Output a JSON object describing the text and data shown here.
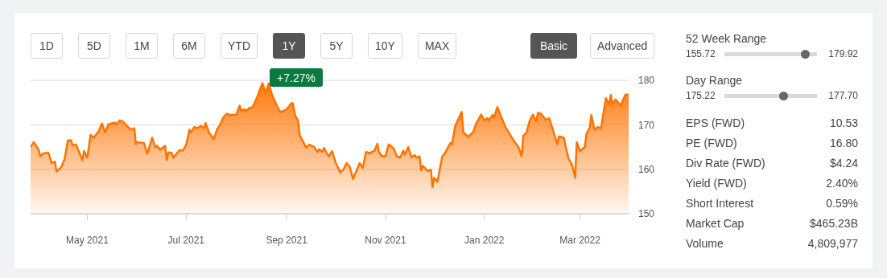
{
  "chart_data": [
    {
      "type": "area",
      "x": [
        "2021-03-27",
        "2021-03-29",
        "2021-04-01",
        "2021-04-02",
        "2021-04-04",
        "2021-04-07",
        "2021-04-09",
        "2021-04-11",
        "2021-04-12",
        "2021-04-15",
        "2021-04-17",
        "2021-04-19",
        "2021-04-21",
        "2021-04-22",
        "2021-04-24",
        "2021-04-28",
        "2021-04-29",
        "2021-05-01",
        "2021-05-03",
        "2021-05-05",
        "2021-05-08",
        "2021-05-10",
        "2021-05-12",
        "2021-05-14",
        "2021-05-18",
        "2021-05-19",
        "2021-05-21",
        "2021-05-23",
        "2021-05-27",
        "2021-05-28",
        "2021-05-30",
        "2021-05-31",
        "2021-06-01",
        "2021-06-05",
        "2021-06-07",
        "2021-06-10",
        "2021-06-12",
        "2021-06-13",
        "2021-06-15",
        "2021-06-17",
        "2021-06-18",
        "2021-06-19",
        "2021-06-20",
        "2021-06-22",
        "2021-06-23",
        "2021-06-27",
        "2021-06-29",
        "2021-07-01",
        "2021-07-03",
        "2021-07-04",
        "2021-07-06",
        "2021-07-08",
        "2021-07-10",
        "2021-07-12",
        "2021-07-13",
        "2021-07-15",
        "2021-07-18",
        "2021-07-20",
        "2021-07-22",
        "2021-07-24",
        "2021-07-26",
        "2021-07-28",
        "2021-08-01",
        "2021-08-03",
        "2021-08-04",
        "2021-08-06",
        "2021-08-07",
        "2021-08-09",
        "2021-08-11",
        "2021-08-14",
        "2021-08-17",
        "2021-08-19",
        "2021-08-21",
        "2021-08-23",
        "2021-08-26",
        "2021-08-28",
        "2021-08-30",
        "2021-09-01",
        "2021-09-04",
        "2021-09-05",
        "2021-09-06",
        "2021-09-08",
        "2021-09-09",
        "2021-09-13",
        "2021-09-15",
        "2021-09-18",
        "2021-09-20",
        "2021-09-21",
        "2021-09-23",
        "2021-09-24",
        "2021-09-26",
        "2021-09-27",
        "2021-09-29",
        "2021-10-01",
        "2021-10-04",
        "2021-10-06",
        "2021-10-08",
        "2021-10-10",
        "2021-10-12",
        "2021-10-14",
        "2021-10-16",
        "2021-10-18",
        "2021-10-20",
        "2021-10-22",
        "2021-10-25",
        "2021-10-27",
        "2021-10-28",
        "2021-10-30",
        "2021-11-01",
        "2021-11-03",
        "2021-11-06",
        "2021-11-08",
        "2021-11-10",
        "2021-11-12",
        "2021-11-13",
        "2021-11-15",
        "2021-11-17",
        "2021-11-19",
        "2021-11-20",
        "2021-11-22",
        "2021-11-23",
        "2021-11-24",
        "2021-11-27",
        "2021-11-29",
        "2021-11-30",
        "2021-12-01",
        "2021-12-03",
        "2021-12-06",
        "2021-12-08",
        "2021-12-11",
        "2021-12-12",
        "2021-12-14",
        "2021-12-16",
        "2021-12-18",
        "2021-12-19",
        "2021-12-22",
        "2021-12-25",
        "2021-12-27",
        "2021-12-30",
        "2022-01-01",
        "2022-01-03",
        "2022-01-04",
        "2022-01-06",
        "2022-01-07",
        "2022-01-09",
        "2022-01-10",
        "2022-01-14",
        "2022-01-17",
        "2022-01-19",
        "2022-01-22",
        "2022-01-24",
        "2022-01-25",
        "2022-01-27",
        "2022-01-29",
        "2022-01-31",
        "2022-02-02",
        "2022-02-03",
        "2022-02-05",
        "2022-02-08",
        "2022-02-10",
        "2022-02-12",
        "2022-02-15",
        "2022-02-16",
        "2022-02-19",
        "2022-02-20",
        "2022-02-22",
        "2022-02-24",
        "2022-02-26",
        "2022-02-27",
        "2022-03-01",
        "2022-03-04",
        "2022-03-05",
        "2022-03-07",
        "2022-03-08",
        "2022-03-10",
        "2022-03-12",
        "2022-03-14",
        "2022-03-15",
        "2022-03-17",
        "2022-03-19",
        "2022-03-20",
        "2022-03-21",
        "2022-03-23",
        "2022-03-26",
        "2022-03-29",
        "2022-03-31"
      ],
      "series": [
        {
          "color": "#ff7300",
          "values": [
            165.0,
            166.1,
            164.4,
            162.9,
            163.6,
            163.7,
            161.4,
            161.7,
            159.5,
            160.5,
            162.3,
            166.5,
            166.5,
            165.3,
            165.6,
            162.0,
            164.1,
            162.6,
            167.7,
            167.1,
            168.5,
            170.3,
            168.3,
            170.1,
            170.5,
            170.1,
            171.0,
            170.7,
            169.2,
            168.9,
            169.2,
            165.6,
            166.1,
            165.9,
            163.5,
            167.1,
            164.9,
            165.3,
            164.4,
            165.0,
            165.3,
            162.1,
            163.8,
            163.7,
            162.6,
            164.3,
            164.2,
            165.5,
            168.9,
            168.3,
            169.5,
            169.2,
            169.8,
            169.2,
            170.4,
            168.3,
            166.8,
            168.9,
            170.1,
            171.7,
            172.5,
            172.2,
            172.3,
            174.3,
            173.1,
            173.5,
            173.1,
            173.8,
            174.0,
            176.4,
            179.4,
            177.3,
            179.3,
            176.7,
            174.3,
            172.9,
            173.1,
            173.5,
            174.9,
            174.7,
            172.3,
            171.0,
            167.7,
            164.9,
            165.5,
            165.0,
            163.9,
            164.5,
            163.9,
            164.8,
            163.5,
            162.9,
            164.1,
            161.7,
            159.3,
            159.9,
            161.4,
            160.5,
            157.8,
            159.6,
            161.4,
            160.3,
            163.9,
            163.6,
            164.1,
            165.7,
            163.8,
            162.9,
            163.0,
            165.6,
            164.7,
            162.9,
            162.6,
            164.2,
            163.3,
            165.0,
            162.7,
            163.2,
            162.6,
            162.9,
            159.7,
            160.8,
            159.6,
            159.9,
            156.0,
            158.1,
            157.2,
            162.9,
            163.8,
            165.9,
            165.6,
            169.8,
            171.3,
            172.9,
            168.3,
            167.3,
            168.3,
            170.3,
            172.3,
            171.0,
            171.5,
            171.0,
            172.2,
            171.7,
            174.0,
            173.1,
            169.5,
            167.7,
            166.5,
            165.0,
            162.9,
            167.5,
            168.3,
            171.0,
            172.3,
            170.7,
            172.7,
            172.5,
            171.1,
            171.5,
            169.2,
            165.6,
            167.4,
            167.1,
            165.3,
            162.3,
            161.1,
            158.1,
            166.1,
            164.1,
            165.0,
            168.0,
            169.3,
            172.2,
            168.9,
            169.5,
            169.2,
            171.6,
            176.0,
            174.6,
            176.7,
            174.7,
            175.7,
            174.3,
            176.8,
            176.8
          ]
        }
      ],
      "xlim": [
        "2021-03-27",
        "2022-03-31"
      ],
      "xticks": [
        {
          "value": "2021-05-01",
          "label": "May 2021"
        },
        {
          "value": "2021-07-01",
          "label": "Jul 2021"
        },
        {
          "value": "2021-09-01",
          "label": "Sep 2021"
        },
        {
          "value": "2021-11-01",
          "label": "Nov 2021"
        },
        {
          "value": "2022-01-01",
          "label": "Jan 2022"
        },
        {
          "value": "2022-03-01",
          "label": "Mar 2022"
        }
      ],
      "ylim": [
        150,
        180
      ],
      "yticks": [
        150,
        160,
        170,
        180
      ],
      "grid": "y",
      "annotations": [
        "1D",
        "5D",
        "1M",
        "6M",
        "YTD",
        "1Y",
        "5Y",
        "10Y",
        "MAX",
        "Basic",
        "Advanced",
        "+7.27%"
      ]
    },
    {
      "type": "other",
      "annotations": [
        "52 Week Range",
        "155.72",
        "179.92",
        "Day Range",
        "175.22",
        "177.70",
        "EPS (FWD)",
        "10.53",
        "PE (FWD)",
        "16.80",
        "Div Rate (FWD)",
        "$4.24",
        "Yield (FWD)",
        "2.40%",
        "Short Interest",
        "0.59%",
        "Market Cap",
        "$465.23B",
        "Volume",
        "4,809,977"
      ]
    }
  ]
}
